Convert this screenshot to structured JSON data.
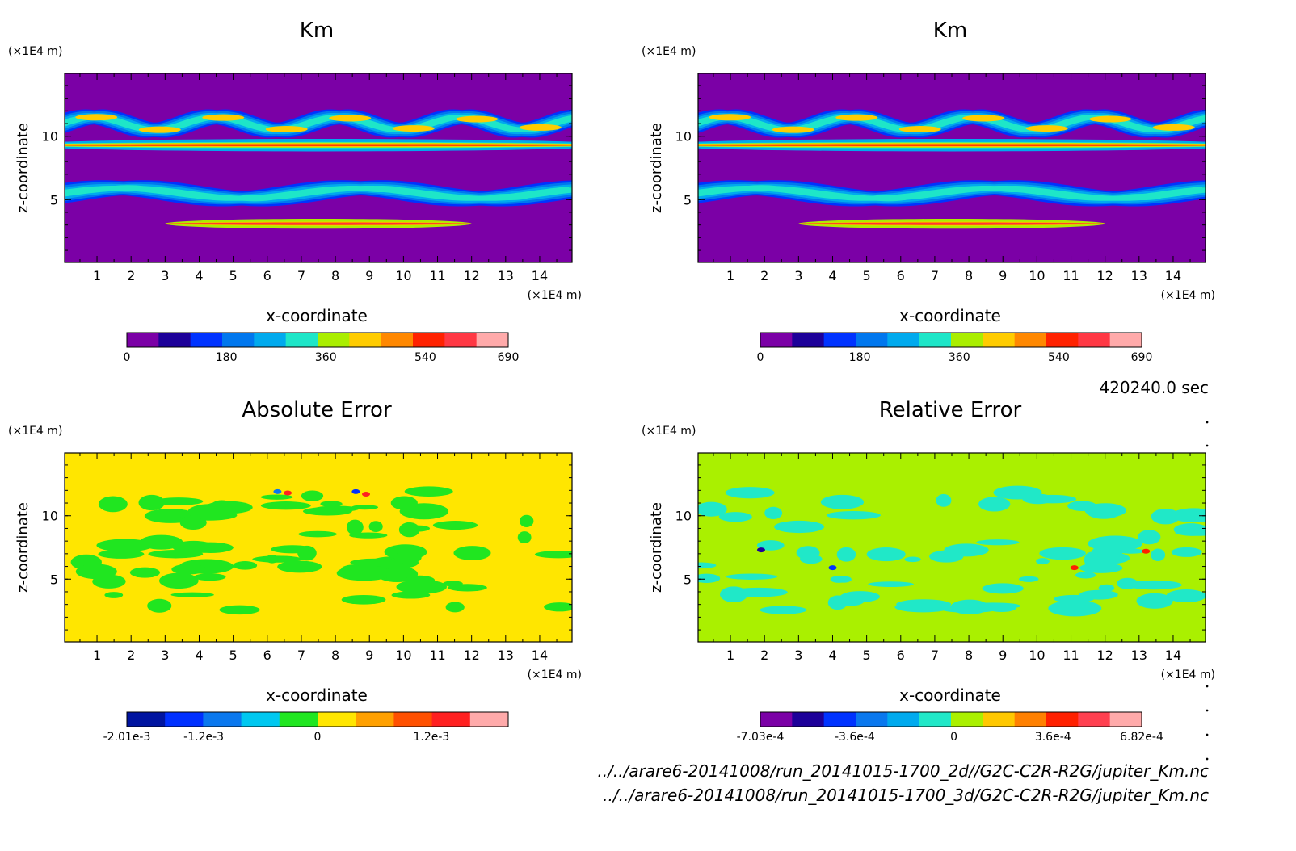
{
  "time_label": "420240.0 sec",
  "files": [
    "../../arare6-20141008/run_20141015-1700_2d//G2C-C2R-R2G/jupiter_Km.nc",
    "../../arare6-20141008/run_20141015-1700_3d/G2C-C2R-R2G/jupiter_Km.nc"
  ],
  "colors": {
    "km": [
      "#7b00a6",
      "#1d0099",
      "#0033ff",
      "#0077ee",
      "#00aaee",
      "#1ee6c8",
      "#aaee00",
      "#ffcc00",
      "#ff8800",
      "#ff2200",
      "#ff3844",
      "#ffaaaa"
    ],
    "abs": [
      "#0014a0",
      "#0030ff",
      "#0a78ee",
      "#00c8f0",
      "#20e620",
      "#ffe600",
      "#ffa000",
      "#ff5000",
      "#ff2020",
      "#ffaaaa"
    ],
    "rel": [
      "#7b00a6",
      "#1d0099",
      "#0033ff",
      "#0a78ee",
      "#00aaee",
      "#20e8c8",
      "#aaf000",
      "#ffc800",
      "#ff8000",
      "#ff2000",
      "#ff4050",
      "#ffaaaa"
    ]
  },
  "chart_data": [
    {
      "type": "heatmap",
      "title": "Km",
      "xlabel": "x-coordinate",
      "ylabel": "z-coordinate",
      "x_unit": "(×1E4 m)",
      "y_unit": "(×1E4 m)",
      "xlim": [
        0.05,
        14.95
      ],
      "ylim": [
        0.05,
        14.95
      ],
      "xticks": [
        "1",
        "2",
        "3",
        "4",
        "5",
        "6",
        "7",
        "8",
        "9",
        "10",
        "11",
        "12",
        "13",
        "14"
      ],
      "yticks": [
        "5",
        "10"
      ],
      "colorbar": {
        "min": 0,
        "max": 690,
        "levels": 12,
        "labels": [
          "0",
          "180",
          "360",
          "540",
          "690"
        ],
        "label_values": [
          0,
          180,
          360,
          540,
          690
        ]
      },
      "background_level": 0,
      "features": [
        {
          "kind": "band",
          "z": 9.3,
          "thickness": 0.6,
          "level": 6,
          "core_level": 9
        },
        {
          "kind": "wave_layer",
          "z": 11.0,
          "x_start": 0.05,
          "x_end": 14.95,
          "amplitude": 1.0,
          "period": 3.6,
          "level": 4,
          "peak_level": 7
        },
        {
          "kind": "wave_layer",
          "z": 5.5,
          "x_start": 0.05,
          "x_end": 14.95,
          "amplitude": 0.8,
          "period": 7.0,
          "level": 4,
          "peak_level": 5
        },
        {
          "kind": "band",
          "z": 3.1,
          "x_start": 3.0,
          "x_end": 12.0,
          "thickness": 0.4,
          "level": 8,
          "core_level": 10
        }
      ]
    },
    {
      "type": "heatmap",
      "title": "Km",
      "xlabel": "x-coordinate",
      "ylabel": "z-coordinate",
      "x_unit": "(×1E4 m)",
      "y_unit": "(×1E4 m)",
      "xlim": [
        0.05,
        14.95
      ],
      "ylim": [
        0.05,
        14.95
      ],
      "xticks": [
        "1",
        "2",
        "3",
        "4",
        "5",
        "6",
        "7",
        "8",
        "9",
        "10",
        "11",
        "12",
        "13",
        "14"
      ],
      "yticks": [
        "5",
        "10"
      ],
      "colorbar": {
        "min": 0,
        "max": 690,
        "levels": 12,
        "labels": [
          "0",
          "180",
          "360",
          "540",
          "690"
        ],
        "label_values": [
          0,
          180,
          360,
          540,
          690
        ]
      },
      "background_level": 0,
      "features": [
        {
          "kind": "band",
          "z": 9.3,
          "thickness": 0.6,
          "level": 6,
          "core_level": 9
        },
        {
          "kind": "wave_layer",
          "z": 11.0,
          "x_start": 0.05,
          "x_end": 14.95,
          "amplitude": 1.0,
          "period": 3.6,
          "level": 4,
          "peak_level": 7
        },
        {
          "kind": "wave_layer",
          "z": 5.5,
          "x_start": 0.05,
          "x_end": 14.95,
          "amplitude": 0.8,
          "period": 7.0,
          "level": 4,
          "peak_level": 5
        },
        {
          "kind": "band",
          "z": 3.1,
          "x_start": 3.0,
          "x_end": 12.0,
          "thickness": 0.4,
          "level": 8,
          "core_level": 10
        }
      ]
    },
    {
      "type": "heatmap",
      "title": "Absolute Error",
      "xlabel": "x-coordinate",
      "ylabel": "z-coordinate",
      "x_unit": "(×1E4 m)",
      "y_unit": "(×1E4 m)",
      "xlim": [
        0.05,
        14.95
      ],
      "ylim": [
        0.05,
        14.95
      ],
      "xticks": [
        "1",
        "2",
        "3",
        "4",
        "5",
        "6",
        "7",
        "8",
        "9",
        "10",
        "11",
        "12",
        "13",
        "14"
      ],
      "yticks": [
        "5",
        "10"
      ],
      "colorbar": {
        "min": -0.00201,
        "max": 0.00201,
        "levels": 10,
        "labels": [
          "-2.01e-3",
          "-1.2e-3",
          "0",
          "1.2e-3"
        ],
        "label_values": [
          -0.00201,
          -0.0012,
          0,
          0.0012
        ]
      },
      "background_level": 5,
      "features": [
        {
          "kind": "patches",
          "level": 4,
          "z_range": [
            2.5,
            12.0
          ]
        },
        {
          "kind": "spots",
          "points": [
            [
              6.3,
              11.9,
              2
            ],
            [
              6.6,
              11.8,
              8
            ],
            [
              8.6,
              11.9,
              1
            ],
            [
              8.9,
              11.7,
              8
            ]
          ]
        }
      ]
    },
    {
      "type": "heatmap",
      "title": "Relative Error",
      "xlabel": "x-coordinate",
      "ylabel": "z-coordinate",
      "x_unit": "(×1E4 m)",
      "y_unit": "(×1E4 m)",
      "xlim": [
        0.05,
        14.95
      ],
      "ylim": [
        0.05,
        14.95
      ],
      "xticks": [
        "1",
        "2",
        "3",
        "4",
        "5",
        "6",
        "7",
        "8",
        "9",
        "10",
        "11",
        "12",
        "13",
        "14"
      ],
      "yticks": [
        "5",
        "10"
      ],
      "colorbar": {
        "min": -0.000703,
        "max": 0.000682,
        "levels": 12,
        "labels": [
          "-7.03e-4",
          "-3.6e-4",
          "0",
          "3.6e-4",
          "6.82e-4"
        ],
        "label_values": [
          -0.000703,
          -0.00036,
          0,
          0.00036,
          0.000682
        ]
      },
      "background_level": 6,
      "features": [
        {
          "kind": "patches",
          "level": 5,
          "z_range": [
            2.5,
            12.0
          ]
        },
        {
          "kind": "spots",
          "points": [
            [
              1.9,
              7.3,
              1
            ],
            [
              4.0,
              5.9,
              2
            ],
            [
              11.1,
              5.9,
              9
            ],
            [
              13.2,
              7.2,
              9
            ]
          ]
        }
      ]
    }
  ]
}
